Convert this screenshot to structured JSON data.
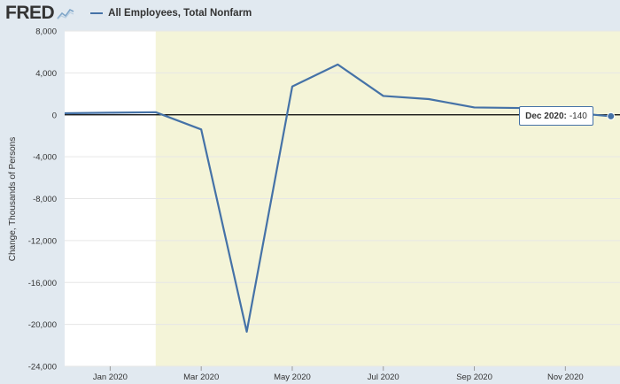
{
  "header": {
    "logo_text": "FRED",
    "logo_icon": "line-chart-icon",
    "legend_label": "All Employees, Total Nonfarm"
  },
  "tooltip": {
    "label": "Dec 2020:",
    "value": "-140"
  },
  "colors": {
    "series": "#4572a7",
    "recession_shade": "#f4f4d8",
    "plot_background": "#ffffff",
    "page_background": "#e1e9f0",
    "zero_line": "#000000"
  },
  "chart_data": {
    "type": "line",
    "title": "",
    "ylabel": "Change, Thousands of Persons",
    "xlabel": "",
    "ylim": [
      -24000,
      8000
    ],
    "y_ticks": [
      8000,
      4000,
      0,
      -4000,
      -8000,
      -12000,
      -16000,
      -20000,
      -24000
    ],
    "y_tick_labels": [
      "8,000",
      "4,000",
      "0",
      "-4,000",
      "-8,000",
      "-12,000",
      "-16,000",
      "-20,000",
      "-24,000"
    ],
    "x_tick_labels": [
      "Jan 2020",
      "Mar 2020",
      "May 2020",
      "Jul 2020",
      "Sep 2020",
      "Nov 2020"
    ],
    "x_tick_positions": [
      "2020-01",
      "2020-03",
      "2020-05",
      "2020-07",
      "2020-09",
      "2020-11"
    ],
    "recession_shading": {
      "start": "2020-02",
      "end": "2020-12"
    },
    "grid": true,
    "series": [
      {
        "name": "All Employees, Total Nonfarm",
        "x": [
          "2019-12",
          "2020-01",
          "2020-02",
          "2020-03",
          "2020-04",
          "2020-05",
          "2020-06",
          "2020-07",
          "2020-08",
          "2020-09",
          "2020-10",
          "2020-11",
          "2020-12"
        ],
        "values": [
          150,
          200,
          250,
          -1400,
          -20700,
          2700,
          4800,
          1800,
          1500,
          700,
          650,
          250,
          -140
        ]
      }
    ]
  }
}
